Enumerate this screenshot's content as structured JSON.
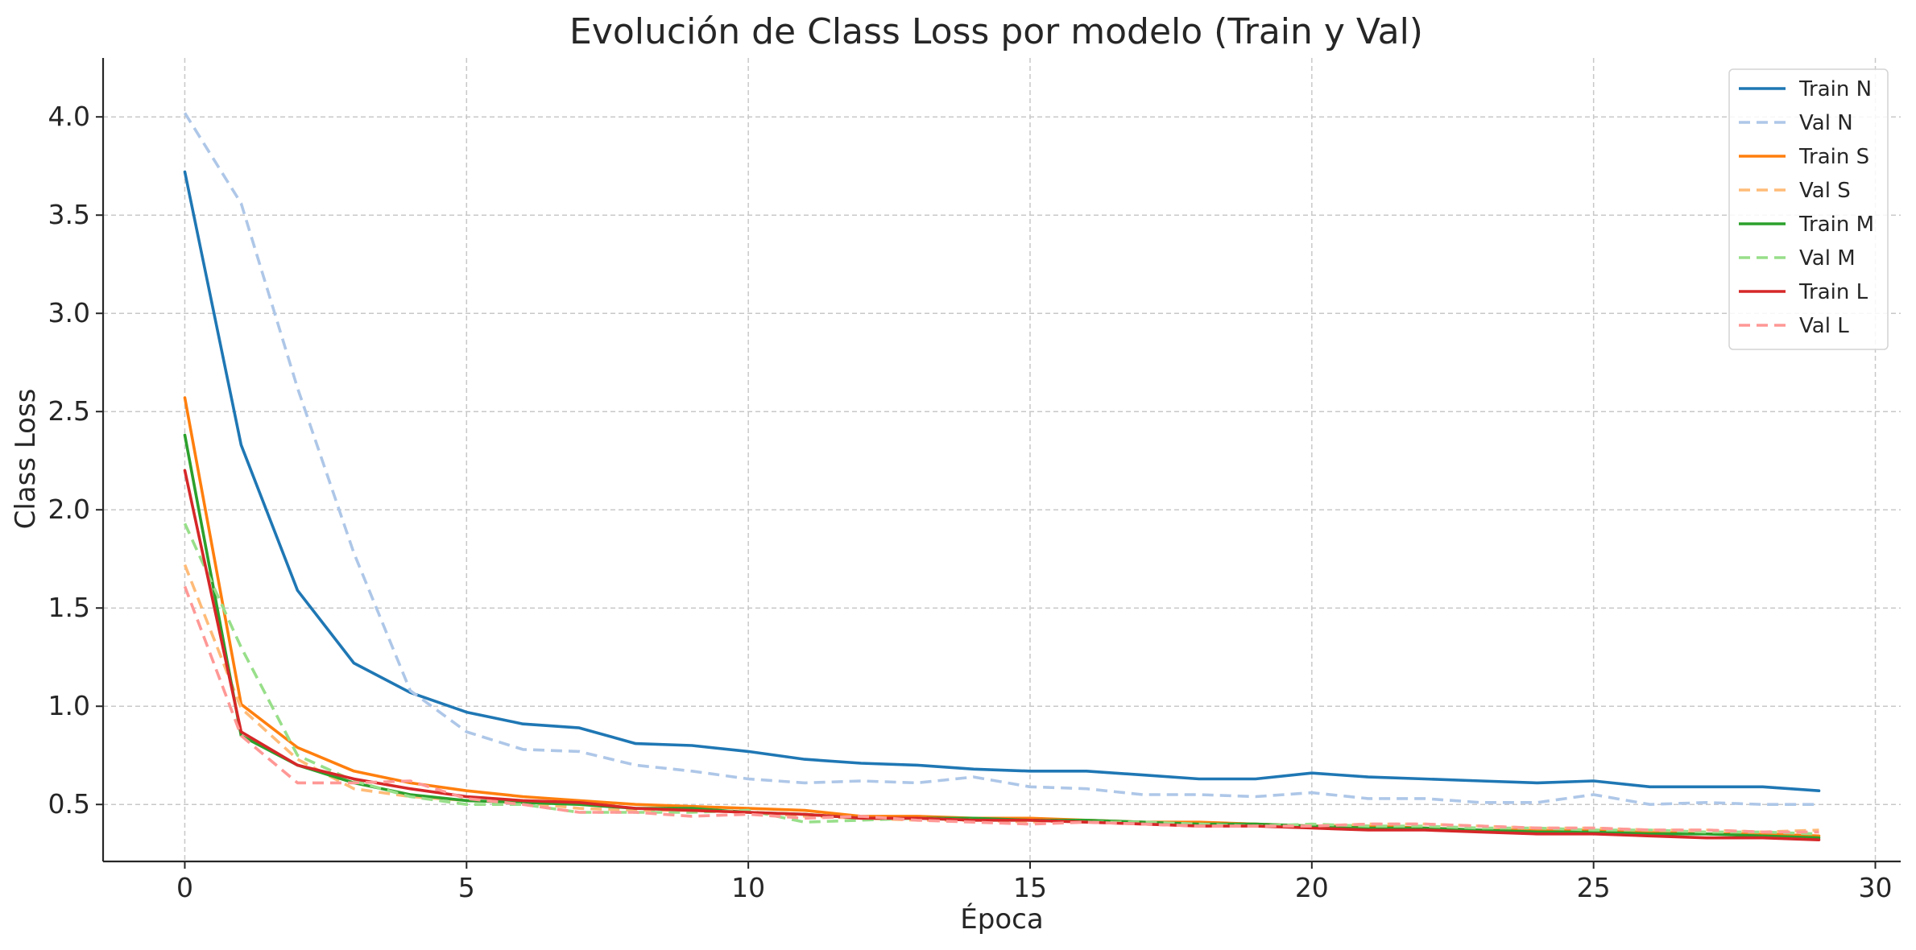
{
  "chart_data": {
    "type": "line",
    "title": "Evolución de Class Loss por modelo (Train y Val)",
    "xlabel": "Época",
    "ylabel": "Class Loss",
    "xlim": [
      -1.45,
      30.45
    ],
    "ylim": [
      0.21,
      4.3
    ],
    "xticks": [
      0,
      5,
      10,
      15,
      20,
      25,
      30
    ],
    "yticks": [
      0.5,
      1.0,
      1.5,
      2.0,
      2.5,
      3.0,
      3.5,
      4.0
    ],
    "ytick_labels": [
      "0.5",
      "1.0",
      "1.5",
      "2.0",
      "2.5",
      "3.0",
      "3.5",
      "4.0"
    ],
    "grid": true,
    "legend_position": "top-right",
    "x": [
      0,
      1,
      2,
      3,
      4,
      5,
      6,
      7,
      8,
      9,
      10,
      11,
      12,
      13,
      14,
      15,
      16,
      17,
      18,
      19,
      20,
      21,
      22,
      23,
      24,
      25,
      26,
      27,
      28,
      29
    ],
    "series": [
      {
        "name": "Train N",
        "color": "#1f77b4",
        "dash": "solid",
        "values": [
          3.72,
          2.33,
          1.59,
          1.22,
          1.07,
          0.97,
          0.91,
          0.89,
          0.81,
          0.8,
          0.77,
          0.73,
          0.71,
          0.7,
          0.68,
          0.67,
          0.67,
          0.65,
          0.63,
          0.63,
          0.66,
          0.64,
          0.63,
          0.62,
          0.61,
          0.62,
          0.59,
          0.59,
          0.59,
          0.57
        ]
      },
      {
        "name": "Val N",
        "color": "#aec7e8",
        "dash": "dashed",
        "values": [
          4.02,
          3.56,
          2.62,
          1.78,
          1.08,
          0.87,
          0.78,
          0.77,
          0.7,
          0.67,
          0.63,
          0.61,
          0.62,
          0.61,
          0.64,
          0.59,
          0.58,
          0.55,
          0.55,
          0.54,
          0.56,
          0.53,
          0.53,
          0.51,
          0.51,
          0.55,
          0.5,
          0.51,
          0.5,
          0.5
        ]
      },
      {
        "name": "Train S",
        "color": "#ff7f0e",
        "dash": "solid",
        "values": [
          2.57,
          1.01,
          0.79,
          0.67,
          0.61,
          0.57,
          0.54,
          0.52,
          0.5,
          0.49,
          0.48,
          0.47,
          0.44,
          0.44,
          0.43,
          0.43,
          0.42,
          0.41,
          0.41,
          0.4,
          0.39,
          0.39,
          0.38,
          0.37,
          0.37,
          0.37,
          0.36,
          0.35,
          0.35,
          0.34
        ]
      },
      {
        "name": "Val S",
        "color": "#ffbb78",
        "dash": "dashed",
        "values": [
          1.72,
          0.99,
          0.73,
          0.58,
          0.54,
          0.52,
          0.51,
          0.48,
          0.47,
          0.47,
          0.46,
          0.44,
          0.43,
          0.42,
          0.42,
          0.41,
          0.42,
          0.41,
          0.4,
          0.4,
          0.39,
          0.4,
          0.4,
          0.39,
          0.38,
          0.38,
          0.37,
          0.37,
          0.36,
          0.37
        ]
      },
      {
        "name": "Train M",
        "color": "#2ca02c",
        "dash": "solid",
        "values": [
          2.38,
          0.85,
          0.7,
          0.61,
          0.55,
          0.52,
          0.51,
          0.5,
          0.48,
          0.48,
          0.46,
          0.45,
          0.43,
          0.43,
          0.43,
          0.42,
          0.42,
          0.41,
          0.4,
          0.4,
          0.39,
          0.38,
          0.38,
          0.37,
          0.36,
          0.36,
          0.35,
          0.35,
          0.34,
          0.33
        ]
      },
      {
        "name": "Val M",
        "color": "#98df8a",
        "dash": "dashed",
        "values": [
          1.93,
          1.3,
          0.75,
          0.62,
          0.54,
          0.5,
          0.5,
          0.46,
          0.46,
          0.46,
          0.47,
          0.41,
          0.42,
          0.43,
          0.42,
          0.42,
          0.41,
          0.41,
          0.4,
          0.39,
          0.4,
          0.39,
          0.39,
          0.38,
          0.38,
          0.37,
          0.37,
          0.36,
          0.36,
          0.35
        ]
      },
      {
        "name": "Train L",
        "color": "#d62728",
        "dash": "solid",
        "values": [
          2.2,
          0.87,
          0.7,
          0.63,
          0.58,
          0.54,
          0.52,
          0.51,
          0.48,
          0.47,
          0.46,
          0.45,
          0.43,
          0.43,
          0.42,
          0.42,
          0.41,
          0.4,
          0.39,
          0.39,
          0.38,
          0.37,
          0.37,
          0.36,
          0.35,
          0.35,
          0.34,
          0.33,
          0.33,
          0.32
        ]
      },
      {
        "name": "Val L",
        "color": "#ff9896",
        "dash": "dashed",
        "values": [
          1.61,
          0.85,
          0.61,
          0.61,
          0.62,
          0.53,
          0.5,
          0.46,
          0.46,
          0.44,
          0.45,
          0.43,
          0.44,
          0.42,
          0.41,
          0.4,
          0.41,
          0.4,
          0.39,
          0.39,
          0.39,
          0.4,
          0.4,
          0.39,
          0.38,
          0.38,
          0.37,
          0.37,
          0.36,
          0.36
        ]
      }
    ]
  }
}
